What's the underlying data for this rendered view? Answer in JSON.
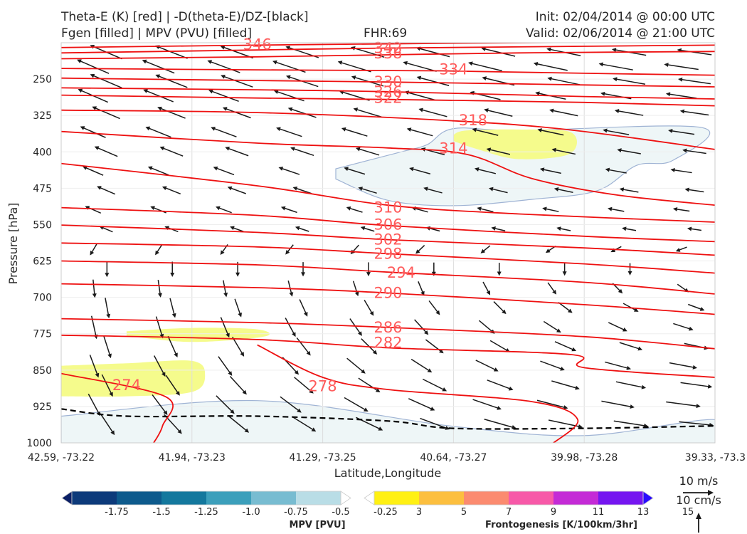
{
  "header": {
    "title_left_1": "Theta-E (K) [red] | -D(theta-E)/DZ-[black]",
    "title_left_2": "Fgen [filled] | MPV (PVU) [filled]",
    "fhr": "FHR:69",
    "init": "Init: 02/04/2014 @ 00:00 UTC",
    "valid": "Valid: 02/06/2014 @ 21:00 UTC"
  },
  "colors": {
    "theta_e": "#ee1111",
    "wind_arrow": "#1a1a1a",
    "mpv_fill": "#eef6f7",
    "mpv_edge": "#9fb3d4",
    "fgen_fill": "#f5fb8c"
  },
  "chart_data": {
    "type": "cross-section",
    "xlabel": "Latitude,Longitude",
    "ylabel": "Pressure [hPa]",
    "x_ticks": [
      "42.59, -73.22",
      "41.94, -73.23",
      "41.29, -73.25",
      "40.64, -73.27",
      "39.98, -73.28",
      "39.33, -73.3"
    ],
    "y_ticks": [
      250,
      325,
      400,
      475,
      550,
      625,
      700,
      775,
      850,
      925,
      1000
    ],
    "ylim": [
      1000,
      175
    ],
    "grid": true,
    "theta_e_contours": [
      {
        "level": 346,
        "points": [
          [
            0,
            185
          ],
          [
            0.3,
            180
          ],
          [
            0.6,
            176
          ],
          [
            1.0,
            172
          ]
        ]
      },
      {
        "level": 342,
        "points": [
          [
            0,
            196
          ],
          [
            0.3,
            190
          ],
          [
            0.5,
            186
          ],
          [
            1.0,
            180
          ]
        ]
      },
      {
        "level": 338,
        "points": [
          [
            0,
            208
          ],
          [
            0.3,
            204
          ],
          [
            0.5,
            200
          ],
          [
            0.7,
            196
          ],
          [
            1.0,
            193
          ]
        ]
      },
      {
        "level": 334,
        "points": [
          [
            0,
            228
          ],
          [
            0.3,
            231
          ],
          [
            0.58,
            233
          ],
          [
            0.8,
            238
          ],
          [
            1.0,
            242
          ]
        ]
      },
      {
        "level": 330,
        "points": [
          [
            0,
            248
          ],
          [
            0.3,
            253
          ],
          [
            0.5,
            256
          ],
          [
            0.8,
            262
          ],
          [
            1.0,
            266
          ]
        ]
      },
      {
        "level": 326,
        "points": [
          [
            0,
            268
          ],
          [
            0.3,
            272
          ],
          [
            0.5,
            276
          ],
          [
            0.8,
            286
          ],
          [
            1.0,
            291
          ]
        ]
      },
      {
        "level": 322,
        "points": [
          [
            0,
            283
          ],
          [
            0.3,
            289
          ],
          [
            0.5,
            292
          ],
          [
            0.8,
            298
          ],
          [
            1.0,
            305
          ]
        ]
      },
      {
        "level": 318,
        "points": [
          [
            0,
            314
          ],
          [
            0.3,
            319
          ],
          [
            0.6,
            336
          ],
          [
            0.78,
            355
          ],
          [
            1.0,
            395
          ]
        ]
      },
      {
        "level": 314,
        "points": [
          [
            0,
            358
          ],
          [
            0.3,
            382
          ],
          [
            0.5,
            392
          ],
          [
            0.62,
            405
          ],
          [
            0.72,
            455
          ],
          [
            0.85,
            489
          ],
          [
            1.0,
            510
          ]
        ]
      },
      {
        "level": 310,
        "points": [
          [
            0,
            424
          ],
          [
            0.3,
            470
          ],
          [
            0.5,
            510
          ],
          [
            0.7,
            528
          ],
          [
            1.0,
            545
          ]
        ]
      },
      {
        "level": 306,
        "points": [
          [
            0,
            515
          ],
          [
            0.3,
            531
          ],
          [
            0.5,
            552
          ],
          [
            0.8,
            574
          ],
          [
            1.0,
            585
          ]
        ]
      },
      {
        "level": 302,
        "points": [
          [
            0,
            551
          ],
          [
            0.3,
            566
          ],
          [
            0.5,
            581
          ],
          [
            0.8,
            598
          ],
          [
            1.0,
            613
          ]
        ]
      },
      {
        "level": 298,
        "points": [
          [
            0,
            588
          ],
          [
            0.3,
            596
          ],
          [
            0.5,
            610
          ],
          [
            0.8,
            631
          ],
          [
            1.0,
            650
          ]
        ]
      },
      {
        "level": 294,
        "points": [
          [
            0,
            625
          ],
          [
            0.3,
            633
          ],
          [
            0.5,
            648
          ],
          [
            0.8,
            669
          ],
          [
            1.0,
            693
          ]
        ]
      },
      {
        "level": 290,
        "points": [
          [
            0,
            672
          ],
          [
            0.3,
            680
          ],
          [
            0.5,
            691
          ],
          [
            0.8,
            715
          ],
          [
            1.0,
            735
          ]
        ]
      },
      {
        "level": 286,
        "points": [
          [
            0,
            744
          ],
          [
            0.3,
            752
          ],
          [
            0.5,
            762
          ],
          [
            0.8,
            781
          ],
          [
            1.0,
            806
          ]
        ]
      },
      {
        "level": 282,
        "points": [
          [
            0,
            778
          ],
          [
            0.3,
            787
          ],
          [
            0.5,
            804
          ],
          [
            0.78,
            818
          ],
          [
            0.8,
            845
          ],
          [
            1.0,
            865
          ]
        ]
      },
      {
        "level": 278,
        "points": [
          [
            0.3,
            798
          ],
          [
            0.4,
            865
          ],
          [
            0.5,
            890
          ],
          [
            0.72,
            915
          ],
          [
            0.79,
            952
          ],
          [
            0.75,
            1003
          ]
        ]
      },
      {
        "level": 274,
        "points": [
          [
            0,
            857
          ],
          [
            0.16,
            905
          ],
          [
            0.155,
            965
          ],
          [
            0.14,
            1003
          ]
        ]
      }
    ],
    "theta_e_labels": [
      {
        "level": 346,
        "x": 0.3,
        "p": 179
      },
      {
        "level": 342,
        "x": 0.5,
        "p": 186
      },
      {
        "level": 338,
        "x": 0.5,
        "p": 197
      },
      {
        "level": 334,
        "x": 0.6,
        "p": 230
      },
      {
        "level": 330,
        "x": 0.5,
        "p": 256
      },
      {
        "level": 326,
        "x": 0.5,
        "p": 276
      },
      {
        "level": 322,
        "x": 0.5,
        "p": 289
      },
      {
        "level": 318,
        "x": 0.63,
        "p": 335
      },
      {
        "level": 314,
        "x": 0.6,
        "p": 393
      },
      {
        "level": 310,
        "x": 0.5,
        "p": 515
      },
      {
        "level": 306,
        "x": 0.5,
        "p": 550
      },
      {
        "level": 302,
        "x": 0.5,
        "p": 581
      },
      {
        "level": 298,
        "x": 0.5,
        "p": 610
      },
      {
        "level": 294,
        "x": 0.52,
        "p": 649
      },
      {
        "level": 290,
        "x": 0.5,
        "p": 691
      },
      {
        "level": 286,
        "x": 0.5,
        "p": 762
      },
      {
        "level": 282,
        "x": 0.5,
        "p": 794
      },
      {
        "level": 278,
        "x": 0.4,
        "p": 883
      },
      {
        "level": 274,
        "x": 0.1,
        "p": 881
      }
    ],
    "mpv_regions": [
      {
        "points": [
          [
            0.42,
            435
          ],
          [
            0.52,
            400
          ],
          [
            0.56,
            385
          ],
          [
            0.6,
            352
          ],
          [
            0.7,
            356
          ],
          [
            0.98,
            350
          ],
          [
            0.935,
            418
          ],
          [
            0.88,
            428
          ],
          [
            0.82,
            480
          ],
          [
            0.72,
            498
          ],
          [
            0.6,
            511
          ],
          [
            0.5,
            500
          ],
          [
            0.42,
            456
          ]
        ]
      },
      {
        "points": [
          [
            0,
            945
          ],
          [
            0.3,
            913
          ],
          [
            0.6,
            966
          ],
          [
            0.8,
            985
          ],
          [
            1.0,
            952
          ],
          [
            1.0,
            1003
          ],
          [
            0,
            1003
          ]
        ]
      }
    ],
    "fgen_regions": [
      {
        "points": [
          [
            0.6,
            365
          ],
          [
            0.62,
            356
          ],
          [
            0.7,
            354
          ],
          [
            0.78,
            360
          ],
          [
            0.778,
            404
          ],
          [
            0.7,
            415
          ],
          [
            0.64,
            396
          ],
          [
            0.6,
            378
          ]
        ]
      },
      {
        "points": [
          [
            0.1,
            770
          ],
          [
            0.2,
            763
          ],
          [
            0.3,
            766
          ],
          [
            0.31,
            781
          ],
          [
            0.2,
            792
          ],
          [
            0.1,
            779
          ]
        ]
      },
      {
        "points": [
          [
            0,
            841
          ],
          [
            0.1,
            836
          ],
          [
            0.2,
            831
          ],
          [
            0.22,
            860
          ],
          [
            0.2,
            895
          ],
          [
            0.1,
            904
          ],
          [
            0,
            904
          ]
        ]
      }
    ],
    "wind_arrows": {
      "cols": [
        0.05,
        0.15,
        0.25,
        0.35,
        0.45,
        0.55,
        0.65,
        0.75,
        0.85,
        0.95
      ]
    },
    "mpv_colorbar": {
      "label": "MPV [PVU]",
      "ticks": [
        "-1.75",
        "-1.5",
        "-1.25",
        "-1.0",
        "-0.75",
        "-0.5",
        "-0.25"
      ],
      "colors": [
        "#0b1f66",
        "#0d3a7a",
        "#0e5a8c",
        "#14789d",
        "#3c9fbb",
        "#78bcd1",
        "#b9dde6",
        "#ffffff"
      ]
    },
    "fgen_colorbar": {
      "label": "Frontogenesis [K/100km/3hr]",
      "ticks": [
        "3",
        "5",
        "7",
        "9",
        "11",
        "13",
        "15"
      ],
      "colors": [
        "#ffffff",
        "#fff014",
        "#fcbf3f",
        "#fb8b70",
        "#f759a8",
        "#c42bd6",
        "#7516f0",
        "#2a0cff"
      ]
    },
    "reference_vectors": {
      "horizontal": "10 m/s",
      "vertical": "10 cm/s"
    }
  }
}
